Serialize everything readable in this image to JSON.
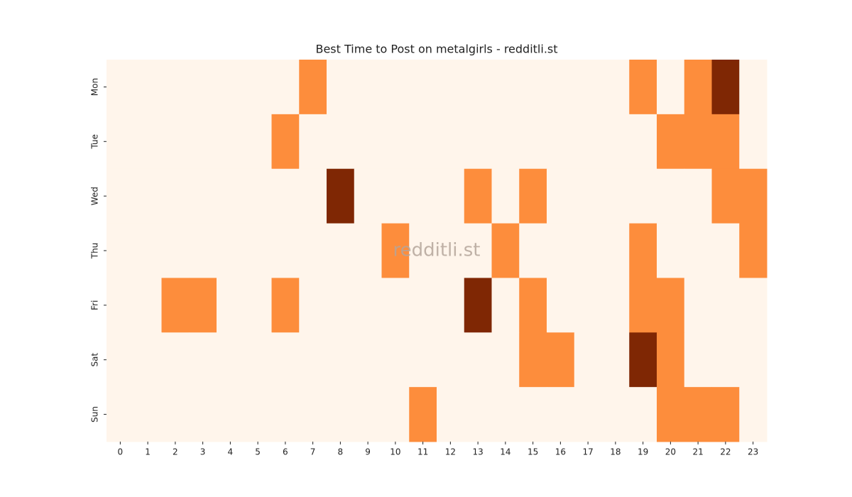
{
  "chart_data": {
    "type": "heatmap",
    "title": "Best Time to Post on metalgirls - redditli.st",
    "watermark": "redditli.st",
    "columns": [
      0,
      1,
      2,
      3,
      4,
      5,
      6,
      7,
      8,
      9,
      10,
      11,
      12,
      13,
      14,
      15,
      16,
      17,
      18,
      19,
      20,
      21,
      22,
      23
    ],
    "rows": [
      "Mon",
      "Tue",
      "Wed",
      "Thu",
      "Fri",
      "Sat",
      "Sun"
    ],
    "values": [
      [
        0,
        0,
        0,
        0,
        0,
        0,
        0,
        1,
        0,
        0,
        0,
        0,
        0,
        0,
        0,
        0,
        0,
        0,
        0,
        1,
        0,
        1,
        2,
        0
      ],
      [
        0,
        0,
        0,
        0,
        0,
        0,
        1,
        0,
        0,
        0,
        0,
        0,
        0,
        0,
        0,
        0,
        0,
        0,
        0,
        0,
        1,
        1,
        1,
        0
      ],
      [
        0,
        0,
        0,
        0,
        0,
        0,
        0,
        0,
        2,
        0,
        0,
        0,
        0,
        1,
        0,
        1,
        0,
        0,
        0,
        0,
        0,
        0,
        1,
        1
      ],
      [
        0,
        0,
        0,
        0,
        0,
        0,
        0,
        0,
        0,
        0,
        1,
        0,
        0,
        0,
        1,
        0,
        0,
        0,
        0,
        1,
        0,
        0,
        0,
        1
      ],
      [
        0,
        0,
        1,
        1,
        0,
        0,
        1,
        0,
        0,
        0,
        0,
        0,
        0,
        2,
        0,
        1,
        0,
        0,
        0,
        1,
        1,
        0,
        0,
        0
      ],
      [
        0,
        0,
        0,
        0,
        0,
        0,
        0,
        0,
        0,
        0,
        0,
        0,
        0,
        0,
        0,
        1,
        1,
        0,
        0,
        2,
        1,
        0,
        0,
        0
      ],
      [
        0,
        0,
        0,
        0,
        0,
        0,
        0,
        0,
        0,
        0,
        0,
        1,
        0,
        0,
        0,
        0,
        0,
        0,
        0,
        0,
        1,
        1,
        1,
        0
      ]
    ],
    "vlim": [
      0,
      2
    ],
    "colorscale": [
      "#fff5eb",
      "#fd8d3c",
      "#7f2704"
    ]
  }
}
